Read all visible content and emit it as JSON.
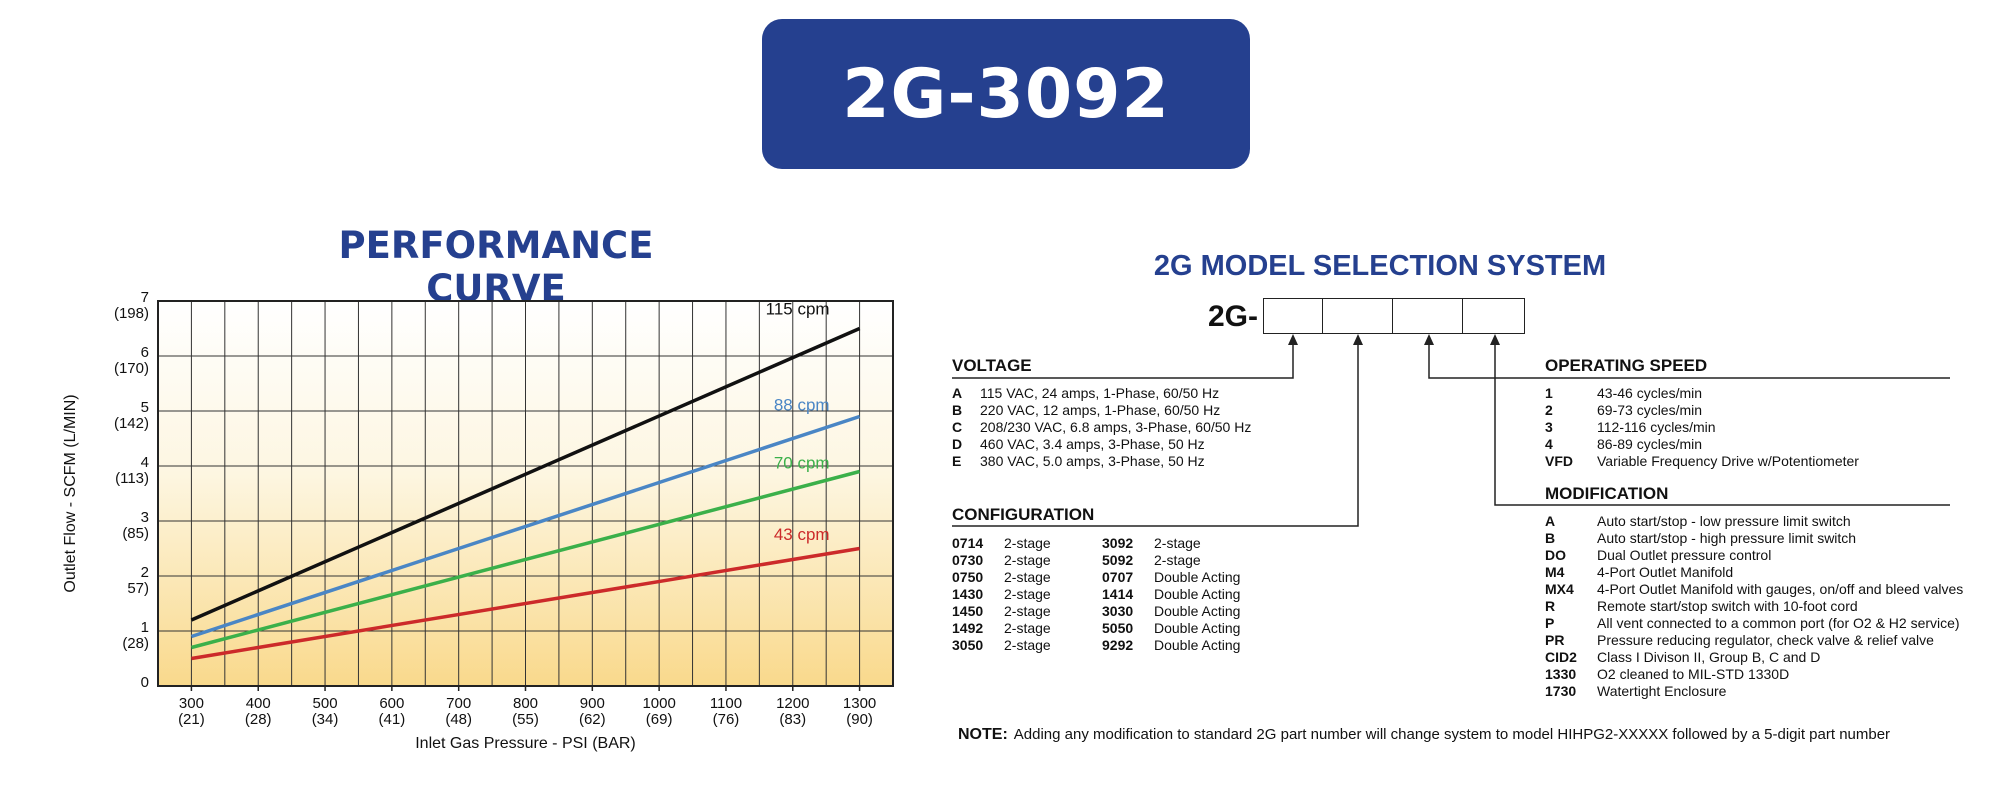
{
  "banner": {
    "title": "2G-3092",
    "color": "#25408f"
  },
  "performance": {
    "title": "PERFORMANCE CURVE"
  },
  "chart_data": {
    "type": "line",
    "xlabel": "Inlet Gas Pressure - PSI (BAR)",
    "ylabel": "Outlet  Flow - SCFM  (L/MIN)",
    "xlim": [
      250,
      1350
    ],
    "ylim": [
      0,
      7
    ],
    "grid": true,
    "x_ticks": [
      {
        "value": 300,
        "label": "300",
        "sub": "(21)"
      },
      {
        "value": 400,
        "label": "400",
        "sub": "(28)"
      },
      {
        "value": 500,
        "label": "500",
        "sub": "(34)"
      },
      {
        "value": 600,
        "label": "600",
        "sub": "(41)"
      },
      {
        "value": 700,
        "label": "700",
        "sub": "(48)"
      },
      {
        "value": 800,
        "label": "800",
        "sub": "(55)"
      },
      {
        "value": 900,
        "label": "900",
        "sub": "(62)"
      },
      {
        "value": 1000,
        "label": "1000",
        "sub": "(69)"
      },
      {
        "value": 1100,
        "label": "1100",
        "sub": "(76)"
      },
      {
        "value": 1200,
        "label": "1200",
        "sub": "(83)"
      },
      {
        "value": 1300,
        "label": "1300",
        "sub": "(90)"
      }
    ],
    "y_ticks": [
      {
        "value": 0,
        "label": "0",
        "sub": ""
      },
      {
        "value": 1,
        "label": "1",
        "sub": "(28)"
      },
      {
        "value": 2,
        "label": "2",
        "sub": "57)"
      },
      {
        "value": 3,
        "label": "3",
        "sub": "(85)"
      },
      {
        "value": 4,
        "label": "4",
        "sub": "(113)"
      },
      {
        "value": 5,
        "label": "5",
        "sub": "(142)"
      },
      {
        "value": 6,
        "label": "6",
        "sub": "(170)"
      },
      {
        "value": 7,
        "label": "7",
        "sub": "(198)"
      }
    ],
    "series": [
      {
        "name": "115 cpm",
        "color": "#111111",
        "x": [
          300,
          1300
        ],
        "y": [
          1.2,
          6.5
        ]
      },
      {
        "name": "88 cpm",
        "color": "#4a86c5",
        "x": [
          300,
          1300
        ],
        "y": [
          0.9,
          4.9
        ]
      },
      {
        "name": "70 cpm",
        "color": "#3bb04a",
        "x": [
          300,
          1300
        ],
        "y": [
          0.7,
          3.9
        ]
      },
      {
        "name": "43 cpm",
        "color": "#cc2a2a",
        "x": [
          300,
          1300
        ],
        "y": [
          0.5,
          2.5
        ]
      }
    ],
    "label_positions": {
      "115 cpm": 6.65,
      "88 cpm": 4.9,
      "70 cpm": 3.85,
      "43 cpm": 2.55
    }
  },
  "selection": {
    "title": "2G MODEL SELECTION SYSTEM",
    "prefix": "2G-",
    "voltage": {
      "heading": "VOLTAGE",
      "items": [
        {
          "code": "A",
          "desc": "115 VAC, 24 amps, 1-Phase, 60/50 Hz"
        },
        {
          "code": "B",
          "desc": "220 VAC,  12 amps, 1-Phase, 60/50 Hz"
        },
        {
          "code": "C",
          "desc": "208/230 VAC,  6.8 amps, 3-Phase, 60/50 Hz"
        },
        {
          "code": "D",
          "desc": "460 VAC,  3.4 amps, 3-Phase, 50 Hz"
        },
        {
          "code": "E",
          "desc": "380 VAC, 5.0 amps, 3-Phase, 50 Hz"
        }
      ]
    },
    "configuration": {
      "heading": "CONFIGURATION",
      "left": [
        {
          "code": "0714",
          "desc": "2-stage"
        },
        {
          "code": "0730",
          "desc": "2-stage"
        },
        {
          "code": "0750",
          "desc": "2-stage"
        },
        {
          "code": "1430",
          "desc": "2-stage"
        },
        {
          "code": "1450",
          "desc": "2-stage"
        },
        {
          "code": "1492",
          "desc": "2-stage"
        },
        {
          "code": "3050",
          "desc": "2-stage"
        }
      ],
      "right": [
        {
          "code": "3092",
          "desc": "2-stage"
        },
        {
          "code": "5092",
          "desc": "2-stage"
        },
        {
          "code": "0707",
          "desc": "Double Acting"
        },
        {
          "code": "1414",
          "desc": "Double Acting"
        },
        {
          "code": "3030",
          "desc": "Double Acting"
        },
        {
          "code": "5050",
          "desc": "Double Acting"
        },
        {
          "code": "9292",
          "desc": "Double Acting"
        }
      ]
    },
    "speed": {
      "heading": "OPERATING SPEED",
      "items": [
        {
          "code": "1",
          "desc": "43-46 cycles/min"
        },
        {
          "code": "2",
          "desc": "69-73 cycles/min"
        },
        {
          "code": "3",
          "desc": "112-116 cycles/min"
        },
        {
          "code": "4",
          "desc": "86-89 cycles/min"
        },
        {
          "code": "VFD",
          "desc": "Variable Frequency Drive w/Potentiometer"
        }
      ]
    },
    "modification": {
      "heading": "MODIFICATION",
      "items": [
        {
          "code": "A",
          "desc": "Auto start/stop - low pressure limit switch"
        },
        {
          "code": "B",
          "desc": "Auto start/stop - high pressure limit switch"
        },
        {
          "code": "DO",
          "desc": "Dual Outlet pressure control"
        },
        {
          "code": "M4",
          "desc": "4-Port Outlet Manifold"
        },
        {
          "code": "MX4",
          "desc": "4-Port Outlet Manifold with gauges, on/off and bleed valves"
        },
        {
          "code": "R",
          "desc": "Remote start/stop switch with 10-foot cord"
        },
        {
          "code": "P",
          "desc": "All vent connected to a common port (for O2 & H2 service)"
        },
        {
          "code": "PR",
          "desc": "Pressure reducing regulator, check valve & relief valve"
        },
        {
          "code": "CID2",
          "desc": "Class I Divison II, Group B, C and D"
        },
        {
          "code": "1330",
          "desc": "O2 cleaned to MIL-STD 1330D"
        },
        {
          "code": "1730",
          "desc": "Watertight Enclosure"
        }
      ]
    },
    "note": {
      "label": "NOTE:",
      "text": "Adding any modification to standard 2G part number will change system to model HIHPG2-XXXXX followed by a 5-digit part number"
    }
  }
}
